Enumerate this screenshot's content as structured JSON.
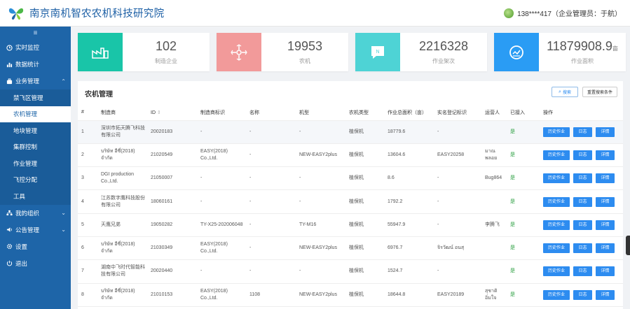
{
  "header": {
    "app_title": "南京南机智农农机科技研究院",
    "user_text": "138****417（企业管理员：于航）"
  },
  "sidebar": {
    "collapse_icon": "≡",
    "items": [
      {
        "label": "实时监控",
        "icon": "clock-icon"
      },
      {
        "label": "数据统计",
        "icon": "chart-icon"
      },
      {
        "label": "业务管理",
        "icon": "briefcase-icon",
        "expanded": true
      }
    ],
    "sub_items": [
      {
        "label": "禁飞区管理"
      },
      {
        "label": "农机管理",
        "active": true
      },
      {
        "label": "地块管理"
      },
      {
        "label": "集群控制"
      },
      {
        "label": "作业管理"
      },
      {
        "label": "飞控分配"
      },
      {
        "label": "工具"
      }
    ],
    "bottom_items": [
      {
        "label": "我的组织",
        "icon": "org-icon"
      },
      {
        "label": "公告管理",
        "icon": "speaker-icon"
      },
      {
        "label": "设置",
        "icon": "gear-icon"
      },
      {
        "label": "退出",
        "icon": "power-icon"
      }
    ]
  },
  "stats": [
    {
      "value": "102",
      "unit": "",
      "label": "制造企业",
      "color": "#19c5a8",
      "icon": "factory-icon"
    },
    {
      "value": "19953",
      "unit": "",
      "label": "农机",
      "color": "#f29a9a",
      "icon": "drone-icon"
    },
    {
      "value": "2216328",
      "unit": "",
      "label": "作业架次",
      "color": "#4ed3d5",
      "icon": "message-icon"
    },
    {
      "value": "11879908.9",
      "unit": "亩",
      "label": "作业面积",
      "color": "#2a9cf4",
      "icon": "area-icon"
    }
  ],
  "panel": {
    "title": "农机管理",
    "search_label": "搜索",
    "reset_label": "重置搜索条件"
  },
  "table": {
    "headers": [
      "#",
      "制造商",
      "ID",
      "制造商标识",
      "名称",
      "机型",
      "农机类型",
      "作业总面积（亩）",
      "实名登记标识",
      "运营人",
      "已接入",
      "操作"
    ],
    "id_sort_icon": "⇕",
    "actions": {
      "history": "历史作业",
      "log": "日志",
      "detail": "详情"
    },
    "rows": [
      {
        "num": "1",
        "maker": "深圳市拓天腾飞科技有限公司",
        "id": "20020183",
        "maker_id": "-",
        "name": "-",
        "model": "-",
        "type": "植保机",
        "area": "18779.6",
        "reg": "-",
        "operator": "",
        "connected": "是"
      },
      {
        "num": "2",
        "maker": "บริษัท อีซี่(2018) จำกัด",
        "id": "21020549",
        "maker_id": "EASY(2018) Co.,Ltd.",
        "name": "-",
        "model": "NEW-EASY2plus",
        "type": "植保机",
        "area": "13604.6",
        "reg": "EASY20258",
        "operator": "มาณ พลอย",
        "connected": "是"
      },
      {
        "num": "3",
        "maker": "DGI production Co.,Ltd.",
        "id": "21050007",
        "maker_id": "-",
        "name": "-",
        "model": "-",
        "type": "植保机",
        "area": "8.6",
        "reg": "-",
        "operator": "Bug864",
        "connected": "是"
      },
      {
        "num": "4",
        "maker": "江苏数字鹰科技股份有限公司",
        "id": "18060161",
        "maker_id": "-",
        "name": "-",
        "model": "-",
        "type": "植保机",
        "area": "1792.2",
        "reg": "-",
        "operator": "",
        "connected": "是"
      },
      {
        "num": "5",
        "maker": "天鹰兄弟",
        "id": "19050282",
        "maker_id": "TY-X25-202006048",
        "name": "-",
        "model": "TY-M16",
        "type": "植保机",
        "area": "55947.9",
        "reg": "-",
        "operator": "李腾飞",
        "connected": "是"
      },
      {
        "num": "6",
        "maker": "บริษัท อีซี่(2018) จำกัด",
        "id": "21030349",
        "maker_id": "EASY(2018) Co.,Ltd.",
        "name": "-",
        "model": "NEW-EASY2plus",
        "type": "植保机",
        "area": "6976.7",
        "reg": "จิรวัฒน์ อนสุ",
        "operator": "",
        "connected": "是"
      },
      {
        "num": "7",
        "maker": "湖南中飞时代智能科技有限公司",
        "id": "20020440",
        "maker_id": "-",
        "name": "-",
        "model": "-",
        "type": "植保机",
        "area": "1524.7",
        "reg": "-",
        "operator": "",
        "connected": "是"
      },
      {
        "num": "8",
        "maker": "บริษัท อีซี่(2018) จำกัด",
        "id": "21010153",
        "maker_id": "EASY(2018) Co.,Ltd.",
        "name": "1108",
        "model": "NEW-EASY2plus",
        "type": "植保机",
        "area": "18644.8",
        "reg": "EASY20189",
        "operator": "สุชาติ อิ่มใจ",
        "connected": "是"
      }
    ]
  }
}
